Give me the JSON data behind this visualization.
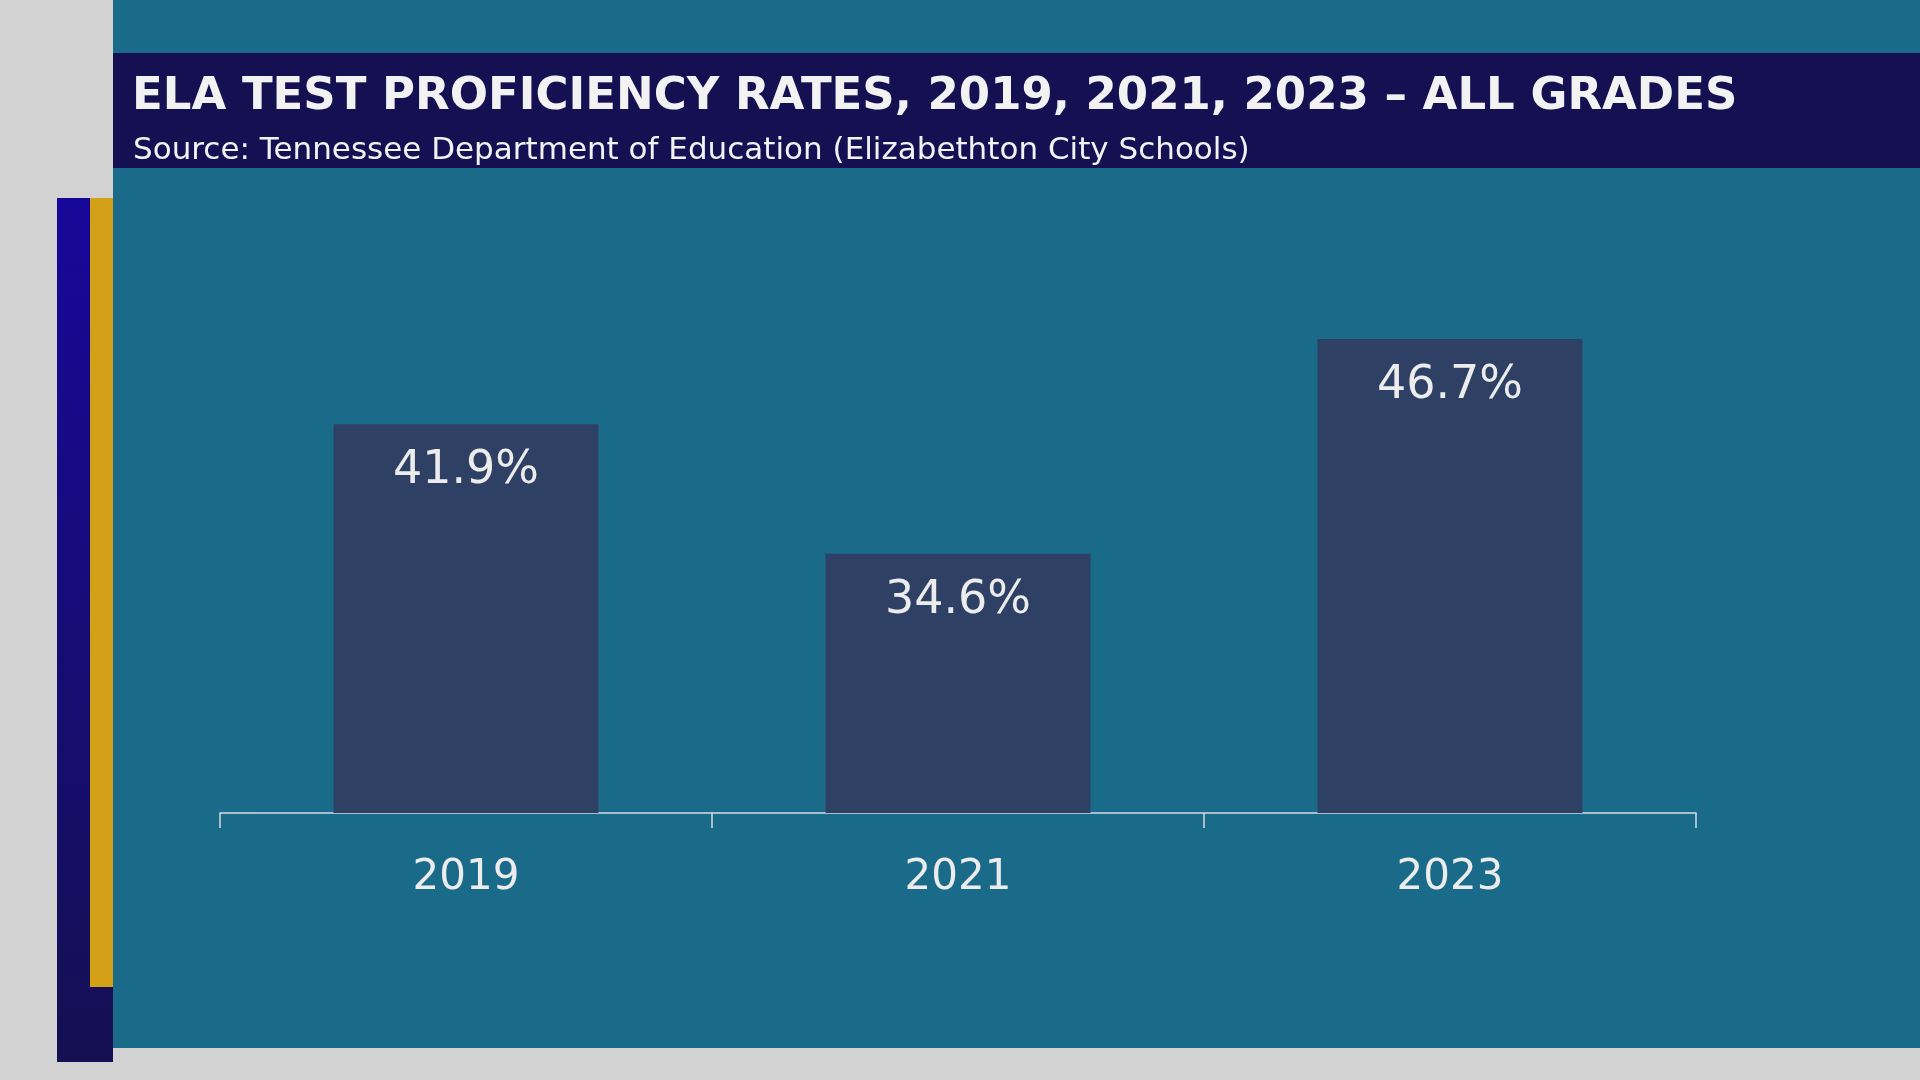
{
  "chart_data": {
    "type": "bar",
    "title": "ELA TEST PROFICIENCY RATES, 2019, 2021, 2023 – ALL GRADES",
    "annotations": [
      "Source: Tennessee Department of Education (Elizabethton City Schools)"
    ],
    "categories": [
      "2019",
      "2021",
      "2023"
    ],
    "values": [
      41.9,
      34.6,
      46.7
    ],
    "value_labels": [
      "41.9%",
      "34.6%",
      "46.7%"
    ],
    "color": "#2e4064",
    "ylim": [
      20,
      46.7
    ],
    "tick_labels": "x"
  }
}
